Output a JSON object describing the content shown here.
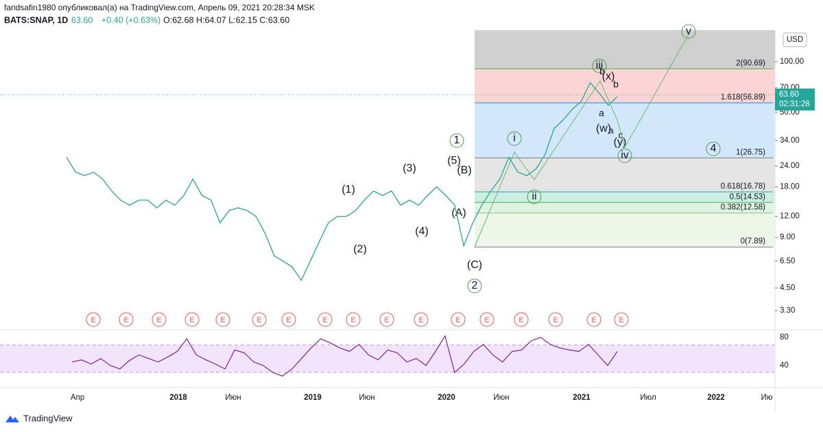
{
  "header": {
    "publisher": "faridsafin1980 опубликовал(а) на TradingView.com, Апрель 09, 2021 20:28:34 MSK",
    "symbol": "BATS:SNAP, 1D",
    "last": "63.60",
    "change": "+0.40 (+0.63%)",
    "ohlc": "O:62.68 H:64.07 L:62.15 C:63.60"
  },
  "price_axis": {
    "currency": "USD",
    "ticks": [
      {
        "value": 100,
        "label": "100.00"
      },
      {
        "value": 70,
        "label": "70.00"
      },
      {
        "value": 50,
        "label": "50.00"
      },
      {
        "value": 34,
        "label": "34.00"
      },
      {
        "value": 24,
        "label": "24.00"
      },
      {
        "value": 18,
        "label": "18.00"
      },
      {
        "value": 12,
        "label": "12.00"
      },
      {
        "value": 9,
        "label": "9.00"
      },
      {
        "value": 6.5,
        "label": "6.50"
      },
      {
        "value": 4.5,
        "label": "4.50"
      },
      {
        "value": 3.3,
        "label": "3.30"
      }
    ],
    "last_price": {
      "value": 63.6,
      "label": "63.60"
    },
    "countdown": "02:31:28"
  },
  "time_axis": [
    "Апр",
    "2018",
    "Июн",
    "2019",
    "Июн",
    "2020",
    "Июн",
    "2021",
    "Июл",
    "2022",
    "Ию"
  ],
  "price": [
    27,
    22,
    21,
    22,
    20,
    17,
    15,
    14,
    15,
    15,
    13.5,
    15,
    14,
    16,
    20,
    16,
    15,
    11,
    13,
    13.5,
    13,
    12,
    9.5,
    7,
    6.5,
    6,
    5,
    6.5,
    8.5,
    11,
    12,
    12,
    13,
    15,
    17,
    16,
    17,
    14,
    15,
    14,
    16,
    18,
    16,
    14,
    8,
    11,
    14,
    17,
    20,
    27,
    22,
    21,
    23,
    28,
    40,
    45,
    52,
    58,
    75,
    65,
    55,
    62
  ],
  "fib_levels": [
    {
      "label": "2(90.69)",
      "value": 90.69
    },
    {
      "label": "1.618(56.89)",
      "value": 56.89
    },
    {
      "label": "1(26.75)",
      "value": 26.75
    },
    {
      "label": "0.618(16.78)",
      "value": 16.78
    },
    {
      "label": "0.5(14.53)",
      "value": 14.53
    },
    {
      "label": "0.382(12.58)",
      "value": 12.58
    },
    {
      "label": "0(7.89)",
      "value": 7.89
    }
  ],
  "waves": [
    "(1)",
    "(2)",
    "(3)",
    "(4)",
    "(5)",
    "(A)",
    "(B)",
    "(C)",
    "1",
    "2",
    "i",
    "ii",
    "iii",
    "iv",
    "v",
    "4",
    "(x)",
    "(w)",
    "(y)",
    "a",
    "b",
    "c",
    "a",
    "b"
  ],
  "earnings": [
    "E",
    "E",
    "E",
    "E",
    "E",
    "E",
    "E",
    "E",
    "E",
    "E",
    "E",
    "E",
    "E",
    "E",
    "E",
    "E",
    "E"
  ],
  "rsi": {
    "ticks": [
      80,
      40
    ],
    "values": [
      45,
      48,
      42,
      50,
      40,
      35,
      47,
      55,
      50,
      45,
      52,
      60,
      78,
      55,
      48,
      42,
      35,
      62,
      58,
      45,
      40,
      30,
      25,
      35,
      50,
      65,
      78,
      72,
      65,
      60,
      70,
      55,
      48,
      62,
      58,
      45,
      50,
      40,
      60,
      82,
      30,
      42,
      60,
      70,
      55,
      45,
      60,
      62,
      75,
      80,
      70,
      65,
      62,
      60,
      70,
      55,
      40,
      60
    ]
  },
  "footer": "TradingView"
}
